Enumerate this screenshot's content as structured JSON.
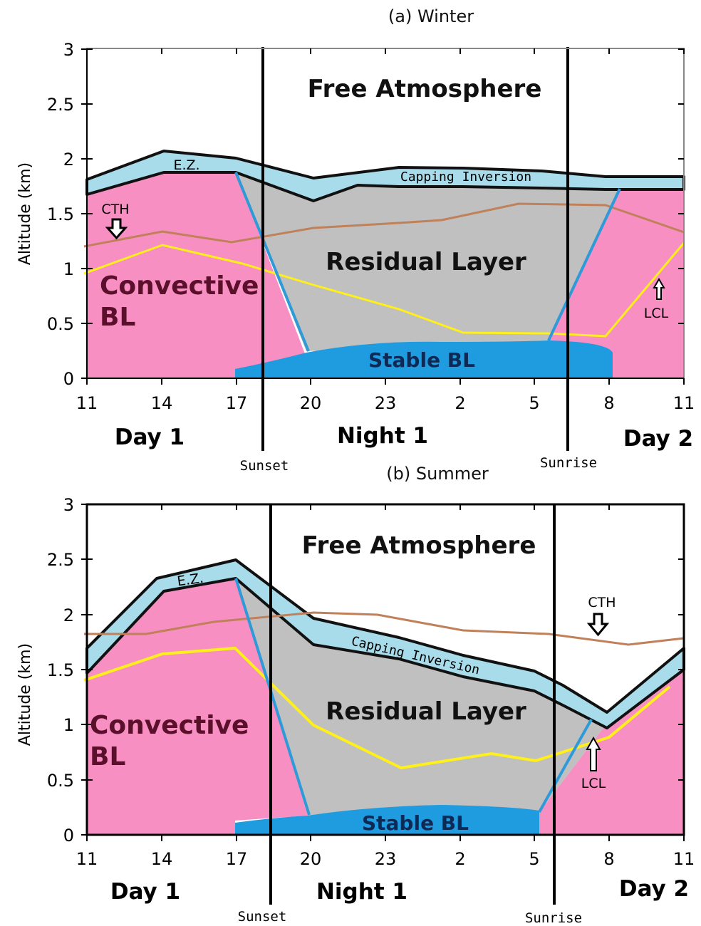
{
  "panels": [
    {
      "title": "(a) Winter",
      "ylabel": "Altitude (km)",
      "y_ticks": [
        "0",
        "0.5",
        "1",
        "1.5",
        "2",
        "2.5",
        "3"
      ],
      "x_ticks": [
        "11",
        "14",
        "17",
        "20",
        "23",
        "2",
        "5",
        "8",
        "11"
      ],
      "period_labels": [
        "Day 1",
        "Night 1",
        "Day 2"
      ],
      "sunset_label": "Sunset",
      "sunrise_label": "Sunrise",
      "free_atmosphere_label": "Free Atmosphere",
      "residual_layer_label": "Residual Layer",
      "convective_label_1": "Convective",
      "convective_label_2": "BL",
      "stable_bl_label": "Stable BL",
      "capping_inversion_label": "Capping Inversion",
      "ez_label": "E.Z.",
      "cth_label": "CTH",
      "lcl_label": "LCL"
    },
    {
      "title": "(b) Summer",
      "ylabel": "Altitude (km)",
      "y_ticks": [
        "0",
        "0.5",
        "1",
        "1.5",
        "2",
        "2.5",
        "3"
      ],
      "x_ticks": [
        "11",
        "14",
        "17",
        "20",
        "23",
        "2",
        "5",
        "8",
        "11"
      ],
      "period_labels": [
        "Day 1",
        "Night 1",
        "Day 2"
      ],
      "sunset_label": "Sunset",
      "sunrise_label": "Sunrise",
      "free_atmosphere_label": "Free Atmosphere",
      "residual_layer_label": "Residual Layer",
      "convective_label_1": "Convective",
      "convective_label_2": "BL",
      "stable_bl_label": "Stable BL",
      "capping_inversion_label": "Capping Inversion",
      "ez_label": "E.Z.",
      "cth_label": "CTH",
      "lcl_label": "LCL"
    }
  ],
  "colors": {
    "convective_bl": "#f78fc3",
    "residual_layer": "#c0c0c0",
    "stable_bl": "#1f9be0",
    "inversion_band": "#a9dcea",
    "cth_line": "#c0805a",
    "lcl_line": "#ffef1a",
    "transition_line": "#2f9ad8"
  }
}
